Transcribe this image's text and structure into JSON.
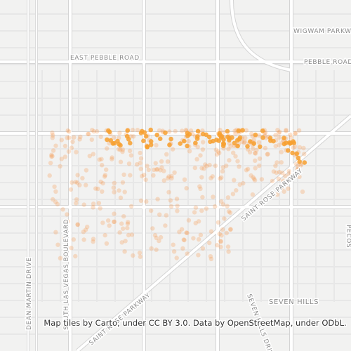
{
  "map": {
    "road_labels": [
      "WIGWAM PARKWAY",
      "EAST PEBBLE ROAD",
      "PEBBLE ROAD",
      "DEAN MARTIN DRIVE",
      "SOUTH LAS VEGAS BOULEVARD",
      "SAINT ROSE PARKWAY",
      "SAINT ROSE PARKWAY",
      "SEVEN HILLS DRIVE",
      "PECOS"
    ],
    "place_labels": [
      "SEVEN HILLS"
    ],
    "attribution": "Map tiles by Carto, under CC BY 3.0. Data by OpenStreetMap, under ODbL."
  }
}
